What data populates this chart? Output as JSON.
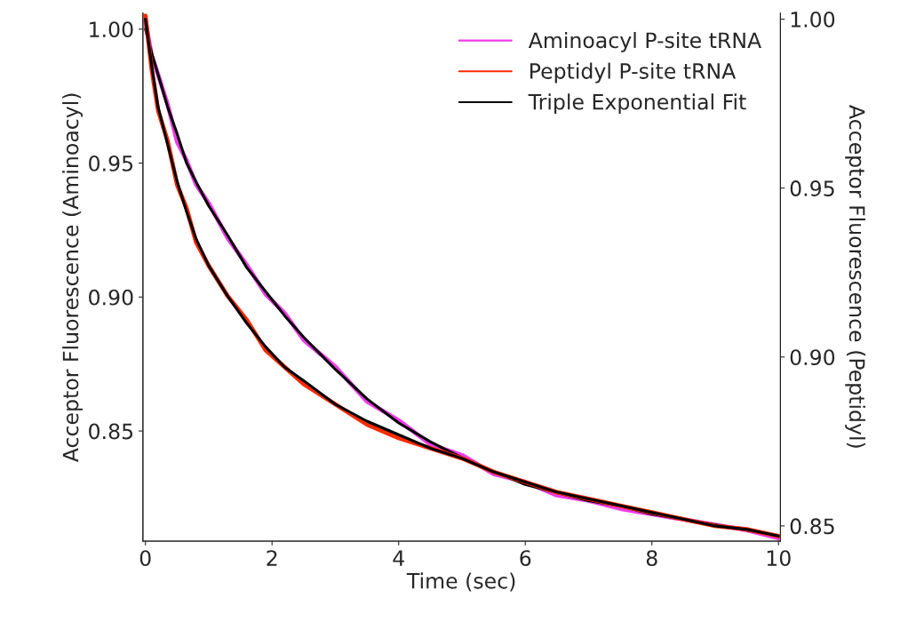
{
  "chart_data": {
    "type": "line",
    "xlabel": "Time (sec)",
    "ylabel": "Acceptor Fluorescence (Aminoacyl)",
    "y2label": "Acceptor Fluorescence (Peptidyl)",
    "xlim": [
      -0.04,
      10.03
    ],
    "xticks": [
      0,
      2,
      4,
      6,
      8,
      10
    ],
    "ylim": [
      0.8089,
      1.006
    ],
    "yticks": [
      {
        "value": 0.85,
        "label": "0.85"
      },
      {
        "value": 0.9,
        "label": "0.90"
      },
      {
        "value": 0.95,
        "label": "0.95"
      },
      {
        "value": 1.0,
        "label": "1.00"
      }
    ],
    "y2lim": [
      0.8455,
      1.0018
    ],
    "y2ticks": [
      {
        "value": 0.85,
        "label": "0.85"
      },
      {
        "value": 0.9,
        "label": "0.90"
      },
      {
        "value": 0.95,
        "label": "0.95"
      },
      {
        "value": 1.0,
        "label": "1.00"
      }
    ],
    "x": [
      0,
      0.1,
      0.2,
      0.35,
      0.5,
      0.65,
      0.8,
      1.0,
      1.3,
      1.6,
      1.9,
      2.2,
      2.5,
      3.0,
      3.5,
      4.0,
      4.5,
      5.0,
      5.5,
      6.0,
      6.5,
      7.0,
      7.5,
      8.0,
      8.5,
      9.0,
      9.5,
      10
    ],
    "series": [
      {
        "name": "Aminoacyl P-site tRNA",
        "color": "#f03ce6",
        "axis": "y",
        "values": [
          1.003,
          0.99,
          0.983,
          0.972,
          0.958,
          0.951,
          0.942,
          0.935,
          0.922,
          0.912,
          0.901,
          0.894,
          0.884,
          0.874,
          0.861,
          0.854,
          0.845,
          0.841,
          0.834,
          0.831,
          0.826,
          0.824,
          0.821,
          0.819,
          0.817,
          0.815,
          0.813,
          0.81
        ]
      },
      {
        "name": "Peptidyl P-site tRNA",
        "color": "#ff2a00",
        "axis": "y2",
        "values": [
          1.001,
          0.985,
          0.973,
          0.964,
          0.951,
          0.944,
          0.934,
          0.927,
          0.918,
          0.911,
          0.902,
          0.897,
          0.892,
          0.886,
          0.88,
          0.876,
          0.873,
          0.87,
          0.866,
          0.863,
          0.86,
          0.858,
          0.856,
          0.854,
          0.852,
          0.85,
          0.849,
          0.847
        ]
      },
      {
        "name": "Triple Exponential Fit",
        "color": "#000000",
        "axis": "y",
        "values": [
          1.0,
          0.991,
          0.983,
          0.971,
          0.961,
          0.95,
          0.943,
          0.934,
          0.923,
          0.911,
          0.902,
          0.893,
          0.885,
          0.873,
          0.862,
          0.853,
          0.846,
          0.84,
          0.835,
          0.83,
          0.827,
          0.824,
          0.822,
          0.819,
          0.817,
          0.815,
          0.813,
          0.811
        ]
      },
      {
        "color": "#000000",
        "axis": "y2",
        "values": [
          1.0,
          0.986,
          0.974,
          0.963,
          0.952,
          0.943,
          0.935,
          0.927,
          0.918,
          0.91,
          0.903,
          0.897,
          0.893,
          0.886,
          0.881,
          0.877,
          0.873,
          0.87,
          0.866,
          0.863,
          0.86,
          0.858,
          0.856,
          0.854,
          0.852,
          0.85,
          0.849,
          0.847
        ]
      }
    ],
    "legend": "top right",
    "grid": false,
    "marker": "none",
    "line_style": "solid"
  }
}
